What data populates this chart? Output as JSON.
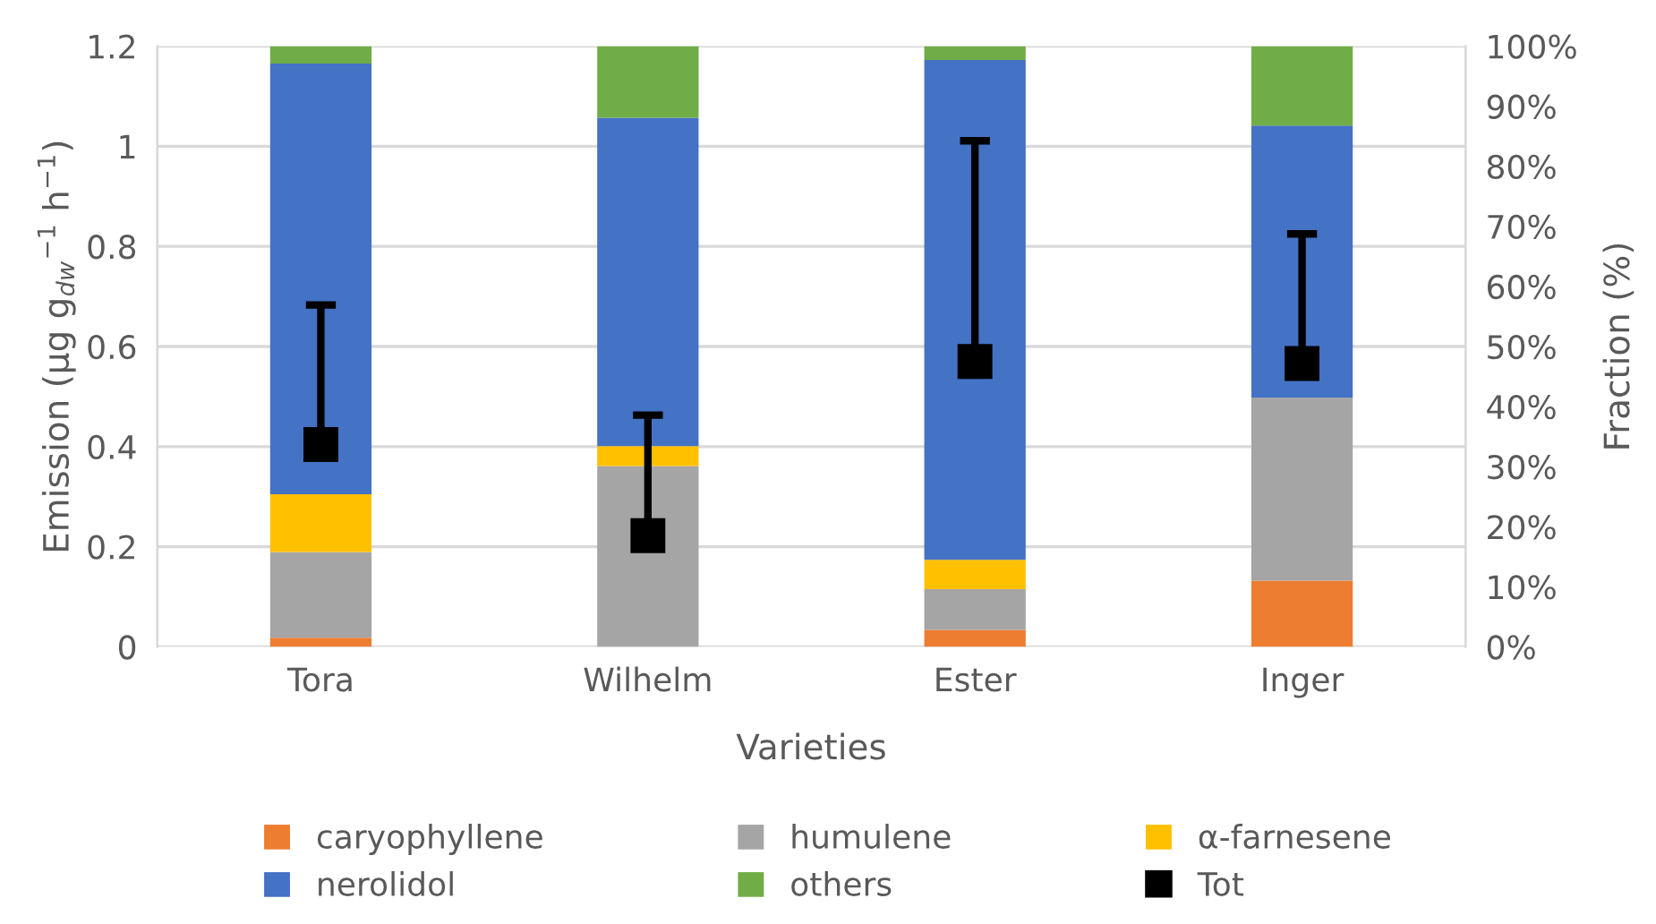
{
  "chart_data": {
    "type": "bar",
    "stacked": true,
    "xlabel": "Varieties",
    "ylabel": "Emission (µg g$_{dw}$$^{−1}$ h$^{−1}$)",
    "y2label": "Fraction (%)",
    "categories": [
      "Tora",
      "Wilhelm",
      "Ester",
      "Inger"
    ],
    "series": [
      {
        "name": "caryophyllene",
        "color": "#ed7d31",
        "axis": "y2",
        "values": [
          1.5,
          0,
          2.8,
          11.0
        ]
      },
      {
        "name": "humulene",
        "color": "#a5a5a5",
        "axis": "y2",
        "values": [
          14.3,
          30.1,
          6.8,
          30.5
        ]
      },
      {
        "name": "α-farnesene",
        "color": "#ffc000",
        "axis": "y2",
        "values": [
          9.6,
          3.3,
          4.9,
          0
        ]
      },
      {
        "name": "nerolidol",
        "color": "#4472c4",
        "axis": "y2",
        "values": [
          71.7,
          54.7,
          83.2,
          45.3
        ]
      },
      {
        "name": "others",
        "color": "#70ad47",
        "axis": "y2",
        "values": [
          2.9,
          11.9,
          2.3,
          13.2
        ]
      },
      {
        "name": "Tot",
        "type": "scatter",
        "color": "#000000",
        "axis": "y",
        "x": [
          "Tora",
          "Wilhelm",
          "Ester",
          "Inger"
        ],
        "values": [
          0.404,
          0.222,
          0.57,
          0.566
        ],
        "errors": [
          [
            0.404,
            0.683
          ],
          [
            0.222,
            0.463
          ],
          [
            0.57,
            1.011
          ],
          [
            0.566,
            0.825
          ]
        ]
      }
    ],
    "ylim": [
      0,
      1.2
    ],
    "yticks": [
      0,
      0.2,
      0.4,
      0.6,
      0.8,
      1,
      1.2
    ],
    "y2lim": [
      0,
      100
    ],
    "y2ticks": [
      {
        "value": 0,
        "label": "0%"
      },
      {
        "value": 10,
        "label": "10%"
      },
      {
        "value": 20,
        "label": "20%"
      },
      {
        "value": 30,
        "label": "30%"
      },
      {
        "value": 40,
        "label": "40%"
      },
      {
        "value": 50,
        "label": "50%"
      },
      {
        "value": 60,
        "label": "60%"
      },
      {
        "value": 70,
        "label": "70%"
      },
      {
        "value": 80,
        "label": "80%"
      },
      {
        "value": 90,
        "label": "90%"
      },
      {
        "value": 100,
        "label": "100%"
      }
    ],
    "grid": "y",
    "legend": "bottom",
    "marker": "square"
  }
}
